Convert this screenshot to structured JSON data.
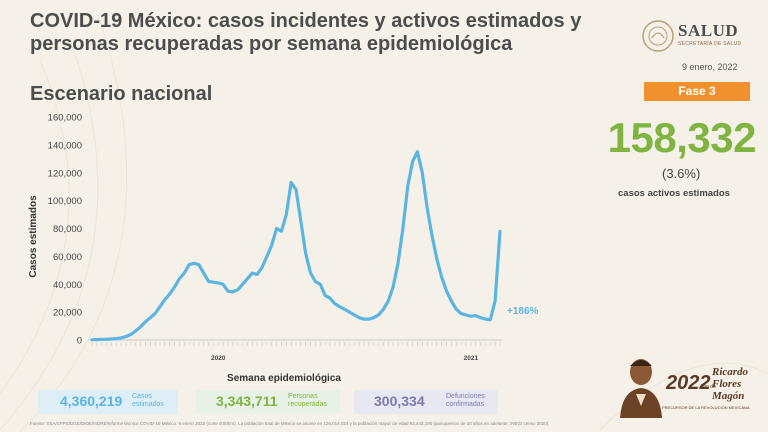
{
  "header": {
    "title": "COVID-19 México: casos incidentes y activos estimados y personas recuperadas por semana epidemiológica",
    "subtitle": "Escenario nacional",
    "date": "9 enero, 2022",
    "phase": "Fase 3"
  },
  "logo": {
    "name": "SALUD",
    "tagline": "SECRETARÍA DE SALUD"
  },
  "kpi": {
    "active_cases": "158,332",
    "active_pct": "(3.6%)",
    "active_label": "casos activos estimados"
  },
  "stats": [
    {
      "value": "4,360,219",
      "label_1": "Casos",
      "label_2": "estimados"
    },
    {
      "value": "3,343,711",
      "label_1": "Personas",
      "label_2": "recuperadas"
    },
    {
      "value": "300,334",
      "label_1": "Defunciones",
      "label_2": "confirmadas"
    }
  ],
  "footnote": "Fuente: SSA/SPPS/DGE/DIOE/InDRE/Informe técnico COVID-19 México. 9 enero 2022 (corte 9:00hrs). La población total de México se asume en 126,014,024 y la población mayor de edad 93,443,190 (quinquenios de 20 años en adelante; INEGI censo 2020).",
  "brand": {
    "year": "2022",
    "suffix": "Año de",
    "name": "Ricardo Flores Magón",
    "tagline": "PRECURSOR DE LA REVOLUCIÓN MEXICANA"
  },
  "colors": {
    "line": "#5bb5e0",
    "kpi": "#7fb440",
    "phase": "#f0912d",
    "box1": "#ddeef7",
    "box2": "#e7f1e5",
    "box3": "#e8e8f2"
  },
  "chart_data": {
    "type": "line",
    "xlabel": "Semana epidemiológica",
    "ylabel": "Casos estimados",
    "ylim": [
      0,
      160000
    ],
    "yticks": [
      0,
      20000,
      40000,
      60000,
      80000,
      100000,
      120000,
      140000,
      160000
    ],
    "ytick_labels": [
      "0",
      "20,000",
      "40,000",
      "60,000",
      "80,000",
      "100,000",
      "120,000",
      "140,000",
      "160,000"
    ],
    "year_labels": [
      {
        "label": "2020",
        "week_index": 26
      },
      {
        "label": "2021",
        "week_index": 78
      }
    ],
    "annotation": "+186%",
    "series": [
      {
        "values": [
          200,
          300,
          400,
          500,
          700,
          1000,
          1500,
          2500,
          4000,
          6500,
          9500,
          13000,
          16000,
          19000,
          24000,
          29000,
          33000,
          38000,
          44000,
          48000,
          54000,
          55000,
          54000,
          48000,
          42000,
          41500,
          41000,
          40000,
          35000,
          34500,
          36000,
          40000,
          44000,
          48000,
          47000,
          52000,
          60000,
          68000,
          80000,
          78000,
          90000,
          113000,
          108000,
          85000,
          62000,
          48000,
          42000,
          40000,
          32000,
          30000,
          26000,
          24000,
          22000,
          20000,
          18000,
          16000,
          15000,
          15000,
          16000,
          18000,
          22000,
          28000,
          38000,
          55000,
          80000,
          110000,
          128000,
          135000,
          120000,
          95000,
          75000,
          58000,
          45000,
          35000,
          28000,
          22000,
          19000,
          18000,
          17000,
          17500,
          16000,
          15000,
          14500,
          28000,
          78000
        ]
      }
    ]
  }
}
